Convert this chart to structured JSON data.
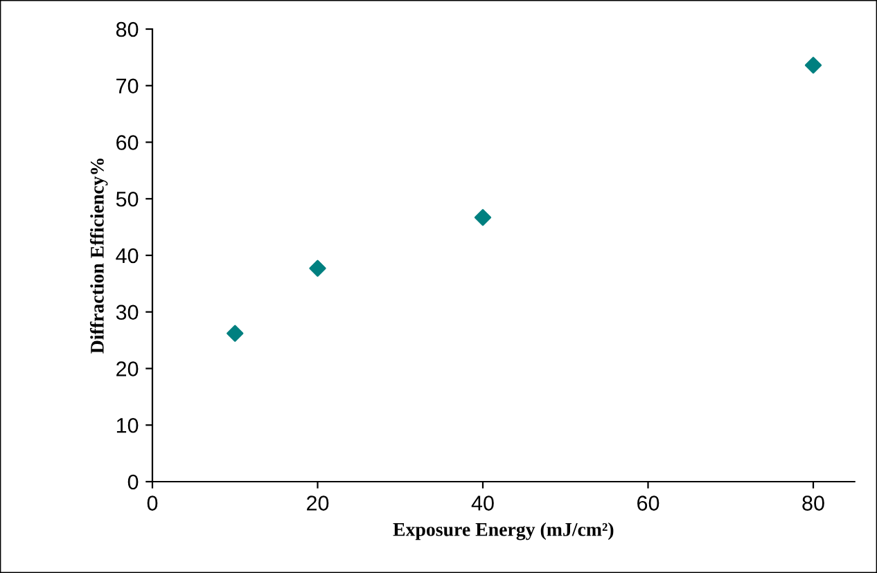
{
  "chart_data": {
    "type": "scatter",
    "xlabel": "Exposure Energy (mJ/cm²)",
    "ylabel": "Diffraction Efficiency%",
    "x": [
      10,
      20,
      40,
      80
    ],
    "values": [
      26.2,
      37.7,
      46.7,
      73.6
    ],
    "color": "#008080",
    "marker": "diamond",
    "xlim": [
      0,
      85
    ],
    "ylim": [
      0,
      80
    ],
    "xticks": [
      0,
      20,
      40,
      60,
      80
    ],
    "yticks": [
      0,
      10,
      20,
      30,
      40,
      50,
      60,
      70,
      80
    ],
    "grid": false,
    "legend": false
  }
}
